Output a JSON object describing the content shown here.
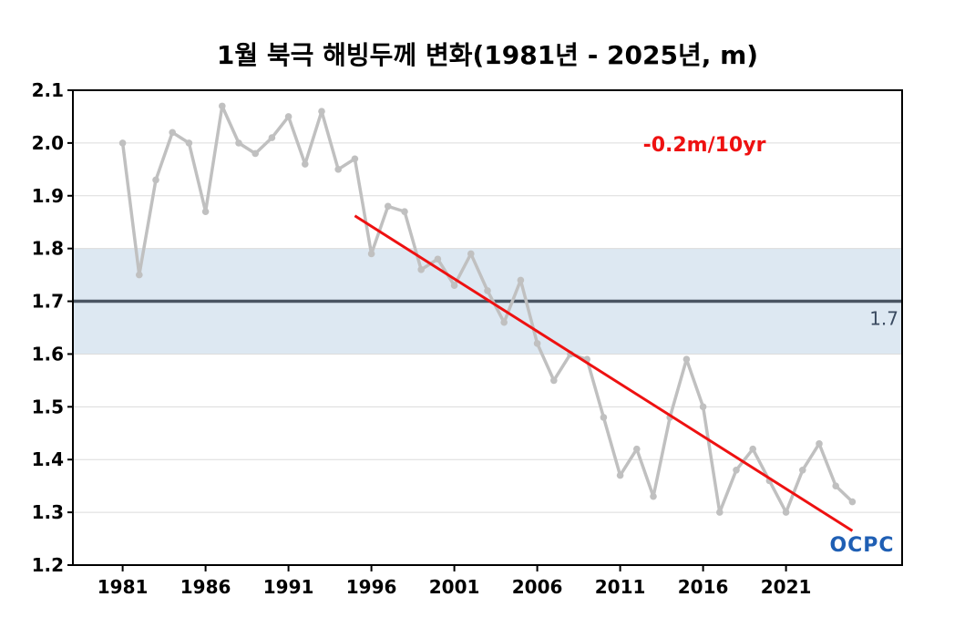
{
  "chart_data": {
    "type": "line",
    "title": "1월 북극 해빙두께 변화(1981년 - 2025년, m)",
    "xlabel": "",
    "ylabel": "",
    "x_ticks": [
      "1981",
      "1986",
      "1991",
      "1996",
      "2001",
      "2006",
      "2011",
      "2016",
      "2021"
    ],
    "y_ticks": [
      "1.2",
      "1.3",
      "1.4",
      "1.5",
      "1.6",
      "1.7",
      "1.8",
      "1.9",
      "2.0",
      "2.1"
    ],
    "xlim": [
      1978,
      2028
    ],
    "ylim": [
      1.2,
      2.1
    ],
    "grid": true,
    "series": [
      {
        "x": [
          1981,
          1982,
          1983,
          1984,
          1985,
          1986,
          1987,
          1988,
          1989,
          1990,
          1991,
          1992,
          1993,
          1994,
          1995,
          1996,
          1997,
          1998,
          1999,
          2000,
          2001,
          2002,
          2003,
          2004,
          2005,
          2006,
          2007,
          2008,
          2009,
          2010,
          2011,
          2012,
          2013,
          2014,
          2015,
          2016,
          2017,
          2018,
          2019,
          2020,
          2021,
          2022,
          2023,
          2024,
          2025
        ],
        "values": [
          2.0,
          1.75,
          1.93,
          2.02,
          2.0,
          1.87,
          2.07,
          2.0,
          1.98,
          2.01,
          2.05,
          1.96,
          2.06,
          1.95,
          1.97,
          1.79,
          1.88,
          1.87,
          1.76,
          1.78,
          1.73,
          1.79,
          1.72,
          1.66,
          1.74,
          1.62,
          1.55,
          1.6,
          1.59,
          1.48,
          1.37,
          1.42,
          1.33,
          1.48,
          1.59,
          1.5,
          1.3,
          1.38,
          1.42,
          1.36,
          1.3,
          1.38,
          1.43,
          1.35,
          1.32
        ],
        "color": "#c0c0c0"
      }
    ],
    "trend": {
      "label": "-0.2m/10yr",
      "x": [
        1995,
        2025
      ],
      "values": [
        1.862,
        1.265
      ],
      "color": "#ee1111"
    },
    "reference": {
      "value": 1.7,
      "label": "1.7",
      "band": [
        1.6,
        1.8
      ],
      "line_color": "#4a5562",
      "band_color": "#dde8f2"
    },
    "logo": "OCPC"
  }
}
